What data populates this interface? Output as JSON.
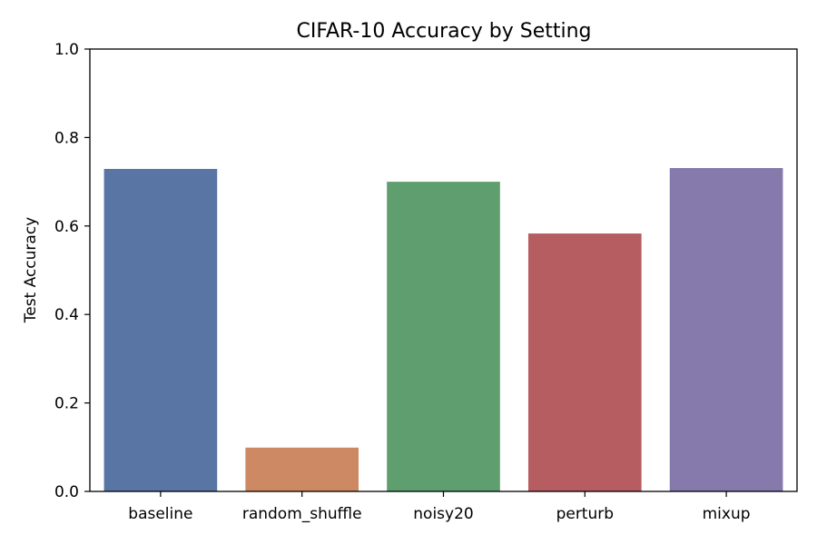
{
  "chart_data": {
    "type": "bar",
    "title": "CIFAR-10 Accuracy by Setting",
    "xlabel": "",
    "ylabel": "Test Accuracy",
    "categories": [
      "baseline",
      "random_shuffle",
      "noisy20",
      "perturb",
      "mixup"
    ],
    "values": [
      0.729,
      0.099,
      0.7,
      0.583,
      0.731
    ],
    "colors": [
      "#5975a4",
      "#cc8963",
      "#5f9e6e",
      "#b55d60",
      "#857aab"
    ],
    "ylim": [
      0,
      1.0
    ],
    "yticks": [
      "0.0",
      "0.2",
      "0.4",
      "0.6",
      "0.8",
      "1.0"
    ],
    "grid": false,
    "legend": "none"
  }
}
